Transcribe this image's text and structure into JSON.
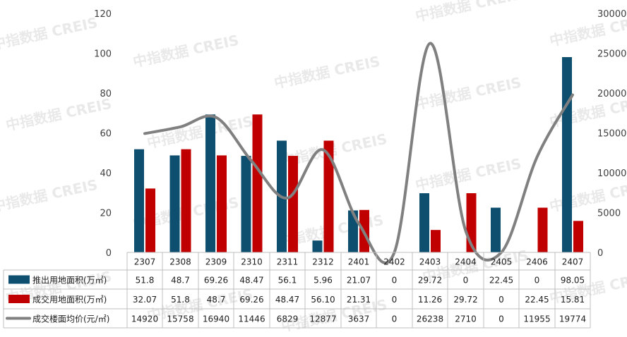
{
  "watermark": "中指数据 CREIS",
  "chart_data": {
    "type": "bar",
    "categories": [
      "2307",
      "2308",
      "2309",
      "2310",
      "2311",
      "2312",
      "2401",
      "2402",
      "2403",
      "2404",
      "2405",
      "2406",
      "2407"
    ],
    "y_left_ticks": [
      "0",
      "20",
      "40",
      "60",
      "80",
      "100",
      "120"
    ],
    "y_right_ticks": [
      "0",
      "5000",
      "10000",
      "15000",
      "20000",
      "25000",
      "30000"
    ],
    "ylim_left": [
      0,
      120
    ],
    "ylim_right": [
      0,
      30000
    ],
    "series": [
      {
        "name": "推出用地面积(万㎡)",
        "type": "bar",
        "axis": "left",
        "color": "#0e4f70",
        "values": [
          51.8,
          48.7,
          69.26,
          48.47,
          56.1,
          5.96,
          21.07,
          0,
          29.72,
          0,
          22.45,
          0,
          98.05
        ],
        "labels": [
          "51.8",
          "48.7",
          "69.26",
          "48.47",
          "56.1",
          "5.96",
          "21.07",
          "0",
          "29.72",
          "0",
          "22.45",
          "0",
          "98.05"
        ]
      },
      {
        "name": "成交用地面积(万㎡)",
        "type": "bar",
        "axis": "left",
        "color": "#c00000",
        "values": [
          32.07,
          51.8,
          48.7,
          69.26,
          48.47,
          56.1,
          21.31,
          0,
          11.26,
          29.72,
          0,
          22.45,
          15.81
        ],
        "labels": [
          "32.07",
          "51.8",
          "48.7",
          "69.26",
          "48.47",
          "56.10",
          "21.31",
          "0",
          "11.26",
          "29.72",
          "0",
          "22.45",
          "15.81"
        ]
      },
      {
        "name": "成交楼面均价(元/㎡)",
        "type": "line",
        "axis": "right",
        "color": "#808080",
        "values": [
          14920,
          15758,
          16940,
          11446,
          6829,
          12877,
          3637,
          0,
          26238,
          2710,
          0,
          11955,
          19774
        ],
        "labels": [
          "14920",
          "15758",
          "16940",
          "11446",
          "6829",
          "12877",
          "3637",
          "0",
          "26238",
          "2710",
          "0",
          "11955",
          "19774"
        ]
      }
    ],
    "grid": false,
    "legend": "table-below"
  }
}
